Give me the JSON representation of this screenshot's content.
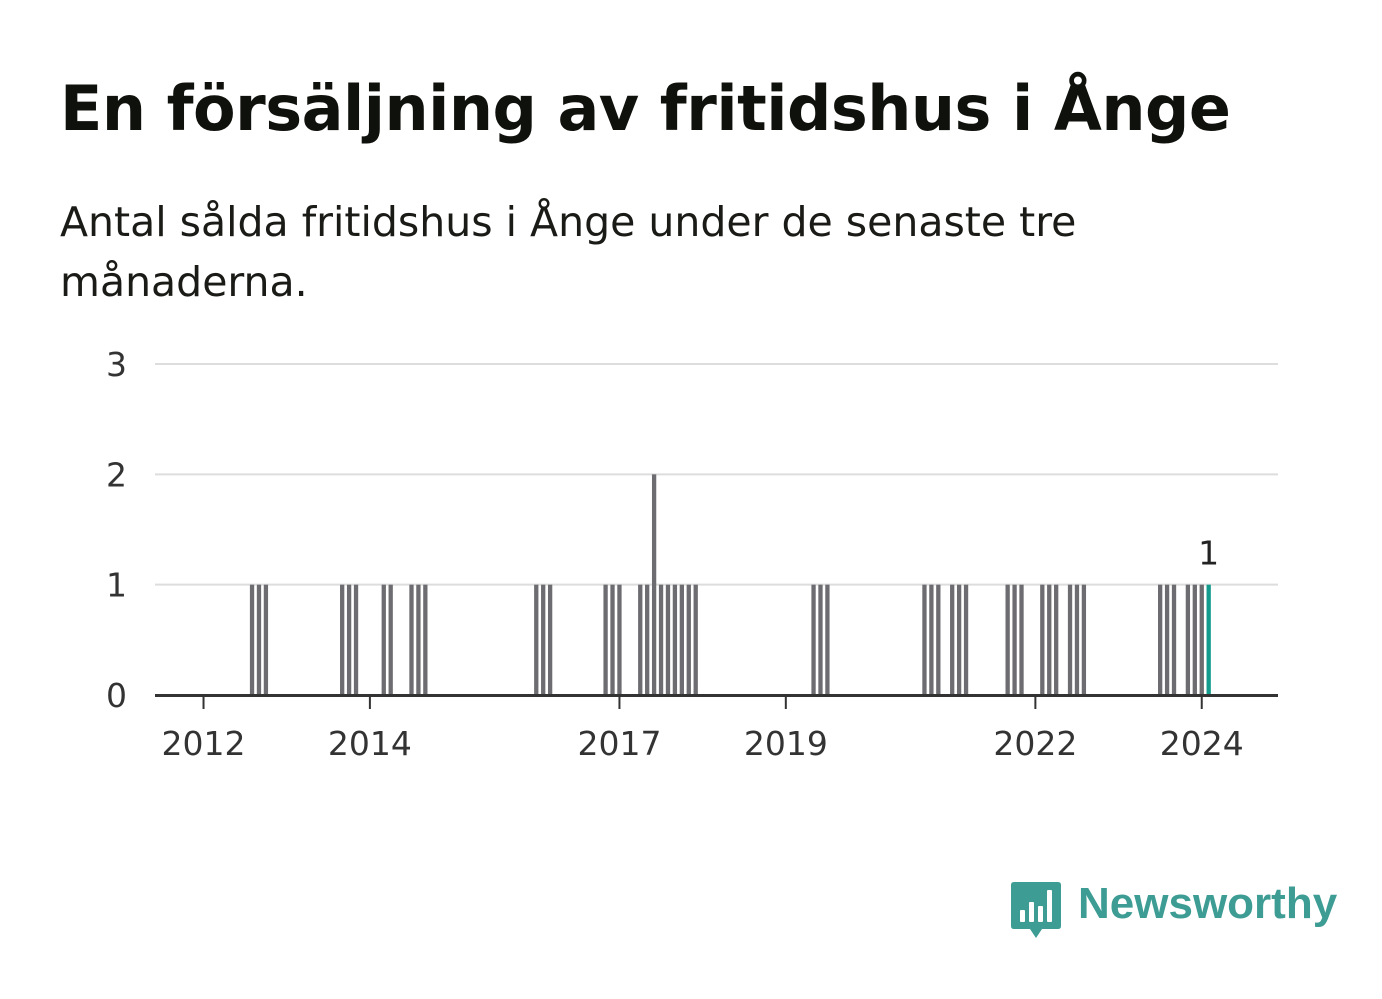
{
  "title": "En försäljning av fritidshus i Ånge",
  "subtitle": "Antal sålda fritidshus i Ånge under de senaste tre månaderna.",
  "brand": {
    "name": "Newsworthy",
    "color": "#3d9c93",
    "icon": "newsworthy-logo-icon"
  },
  "colors": {
    "bar": "#6d6c70",
    "highlight": "#139b8d",
    "grid": "#dddddd",
    "axis": "#333333"
  },
  "chart_data": {
    "type": "bar",
    "x_unit": "month",
    "xlim": [
      "2011-06",
      "2024-12"
    ],
    "ylim": [
      0,
      3
    ],
    "yticks": [
      0,
      1,
      2,
      3
    ],
    "xticks": [
      {
        "date": "2012-01",
        "label": "2012"
      },
      {
        "date": "2014-01",
        "label": "2014"
      },
      {
        "date": "2017-01",
        "label": "2017"
      },
      {
        "date": "2019-01",
        "label": "2019"
      },
      {
        "date": "2022-01",
        "label": "2022"
      },
      {
        "date": "2024-01",
        "label": "2024"
      }
    ],
    "grid": true,
    "legend": "none",
    "series": [
      {
        "values": [
          {
            "x": "2012-08",
            "y": 1
          },
          {
            "x": "2012-09",
            "y": 1
          },
          {
            "x": "2012-10",
            "y": 1
          },
          {
            "x": "2013-09",
            "y": 1
          },
          {
            "x": "2013-10",
            "y": 1
          },
          {
            "x": "2013-11",
            "y": 1
          },
          {
            "x": "2014-03",
            "y": 1
          },
          {
            "x": "2014-04",
            "y": 1
          },
          {
            "x": "2014-07",
            "y": 1
          },
          {
            "x": "2014-08",
            "y": 1
          },
          {
            "x": "2014-09",
            "y": 1
          },
          {
            "x": "2016-01",
            "y": 1
          },
          {
            "x": "2016-02",
            "y": 1
          },
          {
            "x": "2016-03",
            "y": 1
          },
          {
            "x": "2016-11",
            "y": 1
          },
          {
            "x": "2016-12",
            "y": 1
          },
          {
            "x": "2017-01",
            "y": 1
          },
          {
            "x": "2017-04",
            "y": 1
          },
          {
            "x": "2017-05",
            "y": 1
          },
          {
            "x": "2017-06",
            "y": 2
          },
          {
            "x": "2017-07",
            "y": 1
          },
          {
            "x": "2017-08",
            "y": 1
          },
          {
            "x": "2017-09",
            "y": 1
          },
          {
            "x": "2017-10",
            "y": 1
          },
          {
            "x": "2017-11",
            "y": 1
          },
          {
            "x": "2017-12",
            "y": 1
          },
          {
            "x": "2019-05",
            "y": 1
          },
          {
            "x": "2019-06",
            "y": 1
          },
          {
            "x": "2019-07",
            "y": 1
          },
          {
            "x": "2020-09",
            "y": 1
          },
          {
            "x": "2020-10",
            "y": 1
          },
          {
            "x": "2020-11",
            "y": 1
          },
          {
            "x": "2021-01",
            "y": 1
          },
          {
            "x": "2021-02",
            "y": 1
          },
          {
            "x": "2021-03",
            "y": 1
          },
          {
            "x": "2021-09",
            "y": 1
          },
          {
            "x": "2021-10",
            "y": 1
          },
          {
            "x": "2021-11",
            "y": 1
          },
          {
            "x": "2022-02",
            "y": 1
          },
          {
            "x": "2022-03",
            "y": 1
          },
          {
            "x": "2022-04",
            "y": 1
          },
          {
            "x": "2022-06",
            "y": 1
          },
          {
            "x": "2022-07",
            "y": 1
          },
          {
            "x": "2022-08",
            "y": 1
          },
          {
            "x": "2023-07",
            "y": 1
          },
          {
            "x": "2023-08",
            "y": 1
          },
          {
            "x": "2023-09",
            "y": 1
          },
          {
            "x": "2023-11",
            "y": 1
          },
          {
            "x": "2023-12",
            "y": 1
          },
          {
            "x": "2024-01",
            "y": 1
          },
          {
            "x": "2024-02",
            "y": 1,
            "highlight": true
          }
        ]
      }
    ],
    "annotations": [
      {
        "x": "2024-02",
        "y": 1,
        "text": "1"
      }
    ]
  }
}
